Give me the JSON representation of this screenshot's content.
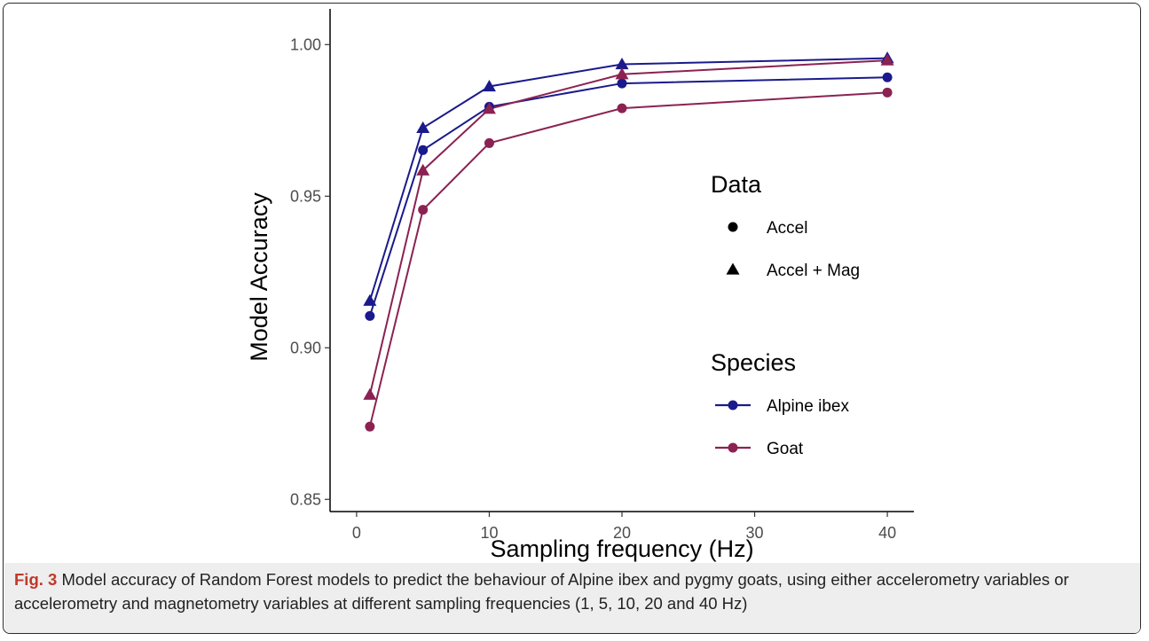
{
  "chart_data": {
    "type": "line",
    "xlabel": "Sampling frequency (Hz)",
    "ylabel": "Model Accuracy",
    "xlim": [
      -2,
      42
    ],
    "ylim": [
      0.85,
      1.0
    ],
    "x_tick_labels": [
      "0",
      "10",
      "20",
      "30",
      "40"
    ],
    "y_tick_labels": [
      "0.85",
      "0.90",
      "0.95",
      "1.00"
    ],
    "x": [
      1,
      5,
      10,
      20,
      40
    ],
    "grid": false,
    "legend": {
      "data_title": "Data",
      "data_items": [
        {
          "label": "Accel",
          "shape": "circle"
        },
        {
          "label": "Accel + Mag",
          "shape": "triangle"
        }
      ],
      "species_title": "Species",
      "species_items": [
        {
          "label": "Alpine ibex",
          "color": "#1a1a8c"
        },
        {
          "label": "Goat",
          "color": "#8b2252"
        }
      ]
    },
    "series": [
      {
        "name": "Alpine ibex Accel",
        "species": "Alpine ibex",
        "data": "Accel",
        "shape": "circle",
        "color": "#1a1a8c",
        "values": [
          0.9105,
          0.9652,
          0.9795,
          0.9872,
          0.9892
        ]
      },
      {
        "name": "Alpine ibex Accel + Mag",
        "species": "Alpine ibex",
        "data": "Accel + Mag",
        "shape": "triangle",
        "color": "#1a1a8c",
        "values": [
          0.9155,
          0.9725,
          0.9862,
          0.9935,
          0.9955
        ]
      },
      {
        "name": "Goat Accel",
        "species": "Goat",
        "data": "Accel",
        "shape": "circle",
        "color": "#8b2252",
        "values": [
          0.874,
          0.9455,
          0.9675,
          0.979,
          0.9842
        ]
      },
      {
        "name": "Goat Accel + Mag",
        "species": "Goat",
        "data": "Accel + Mag",
        "shape": "triangle",
        "color": "#8b2252",
        "values": [
          0.8845,
          0.9585,
          0.9788,
          0.9902,
          0.9948
        ]
      }
    ]
  },
  "caption": {
    "label": "Fig. 3",
    "text": " Model accuracy of Random Forest models to predict the behaviour of Alpine ibex and pygmy goats, using either accelerometry variables or accelerometry and magnetometry variables at different sampling frequencies (1, 5, 10, 20 and 40 Hz)"
  }
}
